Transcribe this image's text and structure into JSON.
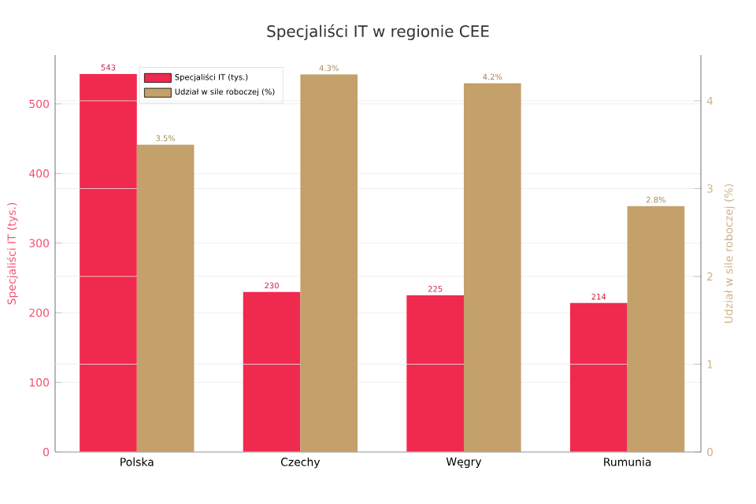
{
  "chart_data": {
    "type": "bar",
    "title": "Specjaliści IT w regionie CEE",
    "categories": [
      "Polska",
      "Czechy",
      "Węgry",
      "Rumunia"
    ],
    "series": [
      {
        "name": "Specjaliści IT (tys.)",
        "color": "#f0294f",
        "values": [
          543,
          230,
          225,
          214
        ],
        "value_labels": [
          "543",
          "230",
          "225",
          "214"
        ]
      },
      {
        "name": "Udział w sile roboczej (%)",
        "color": "#c4a06b",
        "values": [
          3.5,
          4.3,
          4.2,
          2.8
        ],
        "axis": "y2",
        "value_labels": [
          "3.5%",
          "4.3%",
          "4.2%",
          "2.8%"
        ]
      }
    ],
    "ylabel": "Specjaliści IT (tys.)",
    "y2label": "Udział w sile roboczej (%)",
    "ylim": [
      0,
      570
    ],
    "yticks": [
      0,
      100,
      200,
      300,
      400,
      500
    ],
    "y2lim": [
      0,
      4.52
    ],
    "y2ticks": [
      0,
      1,
      2,
      3,
      4
    ],
    "grid": "y",
    "legend": "top left"
  }
}
